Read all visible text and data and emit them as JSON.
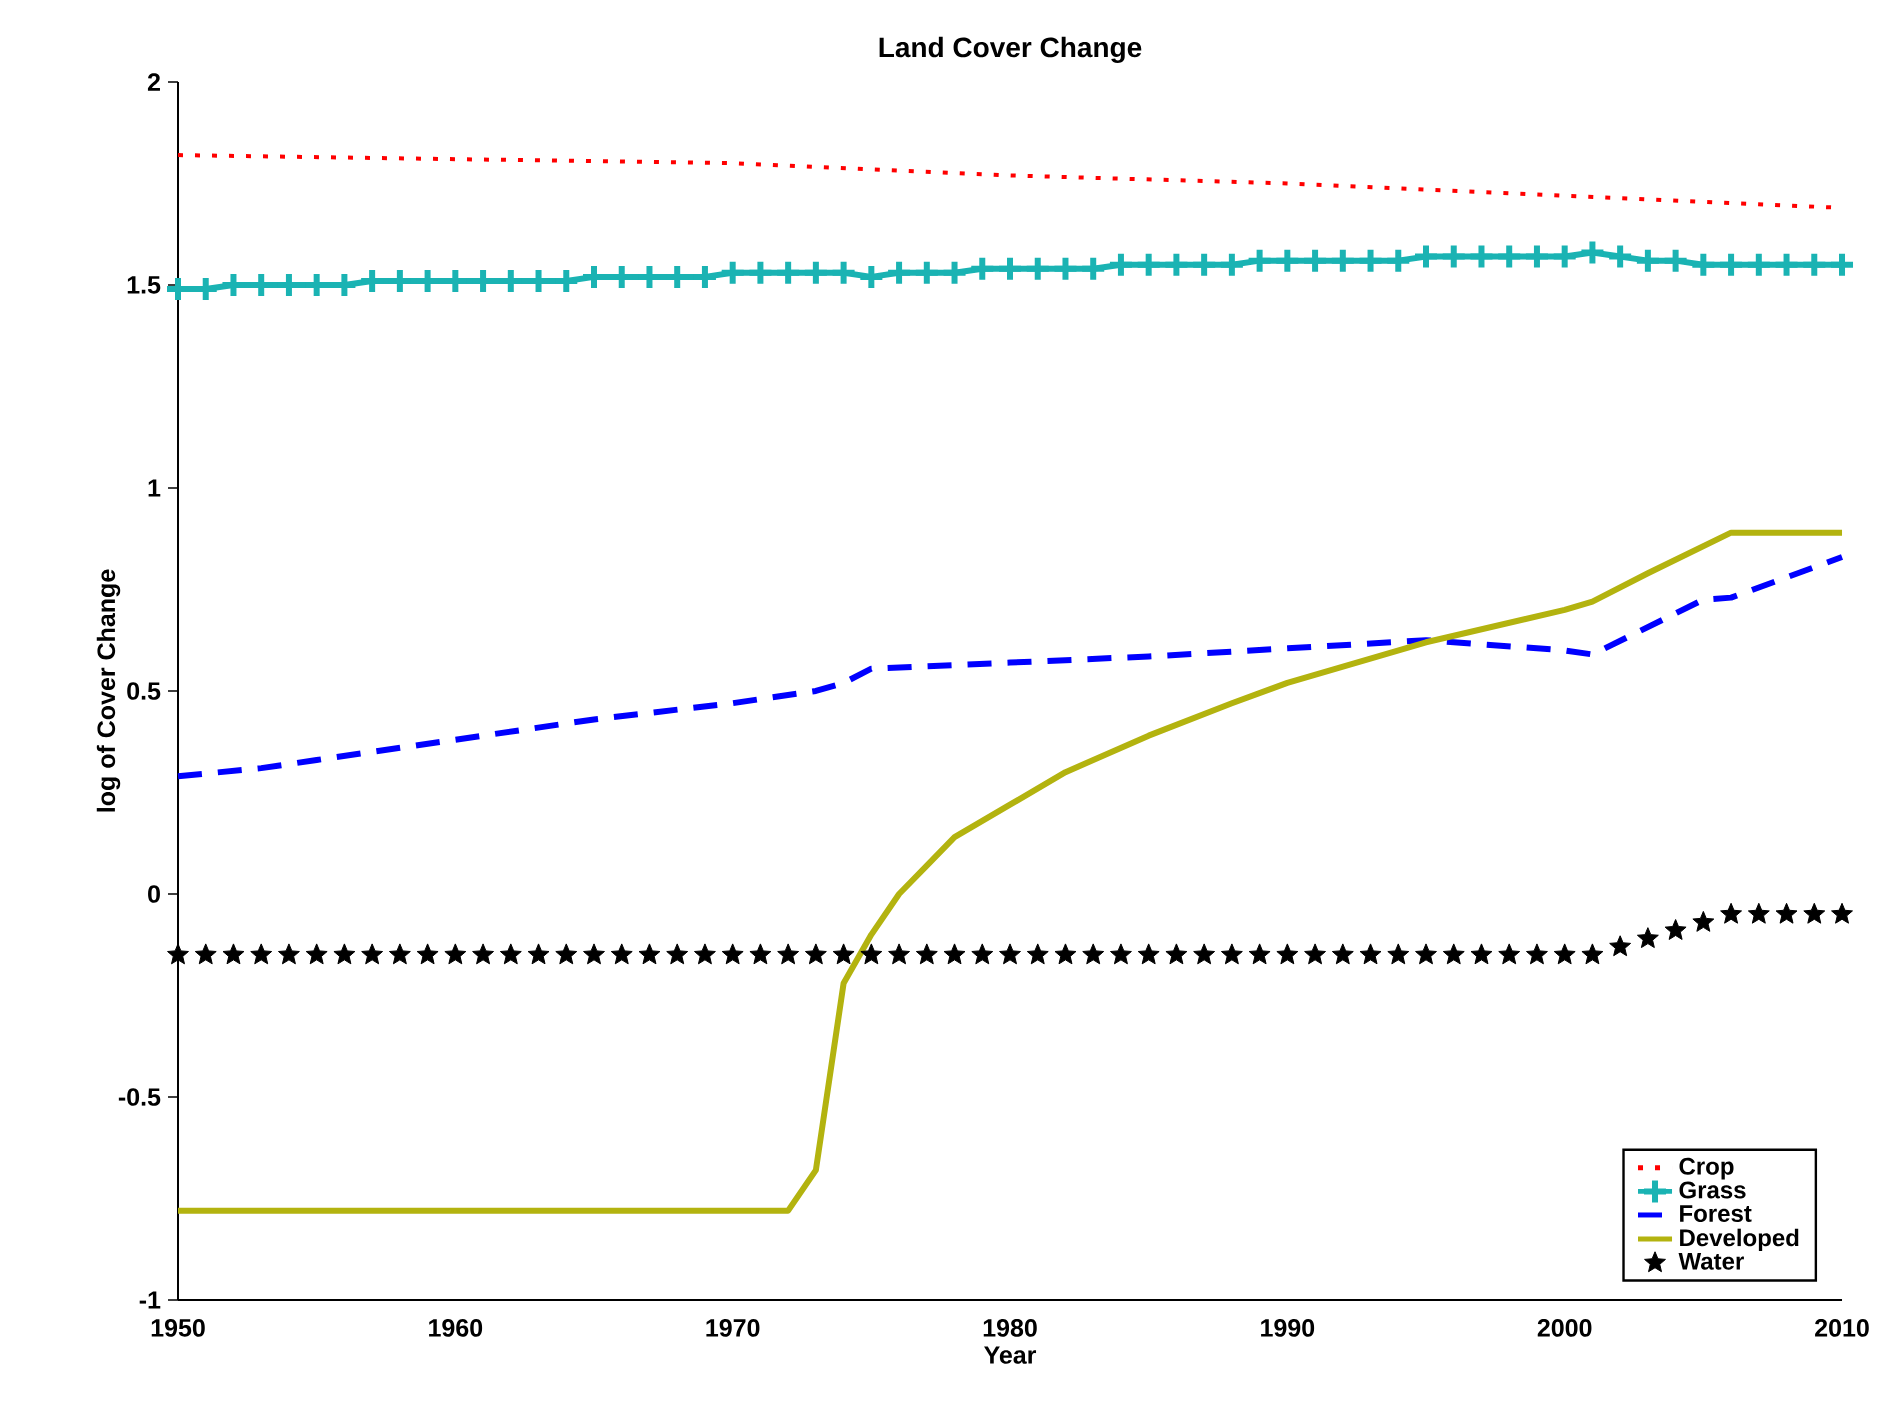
{
  "chart_data": {
    "type": "line",
    "title": "Land Cover Change",
    "xlabel": "Year",
    "ylabel": "log of Cover Change",
    "xlim": [
      1950,
      2010
    ],
    "xticks": [
      1950,
      1960,
      1970,
      1980,
      1990,
      2000,
      2010
    ],
    "ylim": [
      -1,
      2
    ],
    "yticks": [
      -1,
      -0.5,
      0,
      0.5,
      1,
      1.5,
      2
    ],
    "legend": "bottom right",
    "series": [
      {
        "name": "Crop",
        "color": "#ff0000",
        "line_style": "dotted",
        "marker": "none",
        "x": [
          1950,
          1960,
          1970,
          1980,
          1990,
          2000,
          2010
        ],
        "values": [
          1.82,
          1.81,
          1.8,
          1.77,
          1.75,
          1.72,
          1.69
        ]
      },
      {
        "name": "Grass",
        "color": "#1ab3b3",
        "line_style": "solid",
        "marker": "cross",
        "x": [
          1950,
          1951,
          1952,
          1953,
          1954,
          1955,
          1956,
          1957,
          1958,
          1959,
          1960,
          1961,
          1962,
          1963,
          1964,
          1965,
          1966,
          1967,
          1968,
          1969,
          1970,
          1971,
          1972,
          1973,
          1974,
          1975,
          1976,
          1977,
          1978,
          1979,
          1980,
          1981,
          1982,
          1983,
          1984,
          1985,
          1986,
          1987,
          1988,
          1989,
          1990,
          1991,
          1992,
          1993,
          1994,
          1995,
          1996,
          1997,
          1998,
          1999,
          2000,
          2001,
          2002,
          2003,
          2004,
          2005,
          2006,
          2007,
          2008,
          2009,
          2010
        ],
        "values": [
          1.49,
          1.49,
          1.5,
          1.5,
          1.5,
          1.5,
          1.5,
          1.51,
          1.51,
          1.51,
          1.51,
          1.51,
          1.51,
          1.51,
          1.51,
          1.52,
          1.52,
          1.52,
          1.52,
          1.52,
          1.53,
          1.53,
          1.53,
          1.53,
          1.53,
          1.52,
          1.53,
          1.53,
          1.53,
          1.54,
          1.54,
          1.54,
          1.54,
          1.54,
          1.55,
          1.55,
          1.55,
          1.55,
          1.55,
          1.56,
          1.56,
          1.56,
          1.56,
          1.56,
          1.56,
          1.57,
          1.57,
          1.57,
          1.57,
          1.57,
          1.57,
          1.58,
          1.57,
          1.56,
          1.56,
          1.55,
          1.55,
          1.55,
          1.55,
          1.55,
          1.55
        ]
      },
      {
        "name": "Forest",
        "color": "#0000ff",
        "line_style": "dashed",
        "marker": "none",
        "x": [
          1950,
          1953,
          1955,
          1960,
          1965,
          1970,
          1973,
          1974,
          1975,
          1980,
          1985,
          1990,
          1995,
          2000,
          2001,
          2005,
          2006,
          2010
        ],
        "values": [
          0.29,
          0.31,
          0.33,
          0.38,
          0.43,
          0.47,
          0.5,
          0.52,
          0.555,
          0.57,
          0.585,
          0.605,
          0.625,
          0.6,
          0.59,
          0.725,
          0.73,
          0.83
        ]
      },
      {
        "name": "Developed",
        "color": "#b3b30f",
        "line_style": "solid",
        "marker": "none",
        "x": [
          1950,
          1972,
          1973,
          1974,
          1975,
          1976,
          1977,
          1978,
          1980,
          1982,
          1985,
          1988,
          1990,
          1995,
          2000,
          2001,
          2003,
          2006,
          2010
        ],
        "values": [
          -0.78,
          -0.78,
          -0.68,
          -0.22,
          -0.1,
          0.0,
          0.07,
          0.14,
          0.22,
          0.3,
          0.39,
          0.47,
          0.52,
          0.62,
          0.7,
          0.72,
          0.79,
          0.89,
          0.89
        ]
      },
      {
        "name": "Water",
        "type": "scatter",
        "color": "#000000",
        "marker": "star",
        "x": [
          1950,
          1951,
          1952,
          1953,
          1954,
          1955,
          1956,
          1957,
          1958,
          1959,
          1960,
          1961,
          1962,
          1963,
          1964,
          1965,
          1966,
          1967,
          1968,
          1969,
          1970,
          1971,
          1972,
          1973,
          1974,
          1975,
          1976,
          1977,
          1978,
          1979,
          1980,
          1981,
          1982,
          1983,
          1984,
          1985,
          1986,
          1987,
          1988,
          1989,
          1990,
          1991,
          1992,
          1993,
          1994,
          1995,
          1996,
          1997,
          1998,
          1999,
          2000,
          2001,
          2002,
          2003,
          2004,
          2005,
          2006,
          2007,
          2008,
          2009,
          2010
        ],
        "values": [
          -0.15,
          -0.15,
          -0.15,
          -0.15,
          -0.15,
          -0.15,
          -0.15,
          -0.15,
          -0.15,
          -0.15,
          -0.15,
          -0.15,
          -0.15,
          -0.15,
          -0.15,
          -0.15,
          -0.15,
          -0.15,
          -0.15,
          -0.15,
          -0.15,
          -0.15,
          -0.15,
          -0.15,
          -0.15,
          -0.15,
          -0.15,
          -0.15,
          -0.15,
          -0.15,
          -0.15,
          -0.15,
          -0.15,
          -0.15,
          -0.15,
          -0.15,
          -0.15,
          -0.15,
          -0.15,
          -0.15,
          -0.15,
          -0.15,
          -0.15,
          -0.15,
          -0.15,
          -0.15,
          -0.15,
          -0.15,
          -0.15,
          -0.15,
          -0.15,
          -0.15,
          -0.13,
          -0.11,
          -0.09,
          -0.07,
          -0.05,
          -0.05,
          -0.05,
          -0.05,
          -0.05
        ]
      }
    ]
  }
}
